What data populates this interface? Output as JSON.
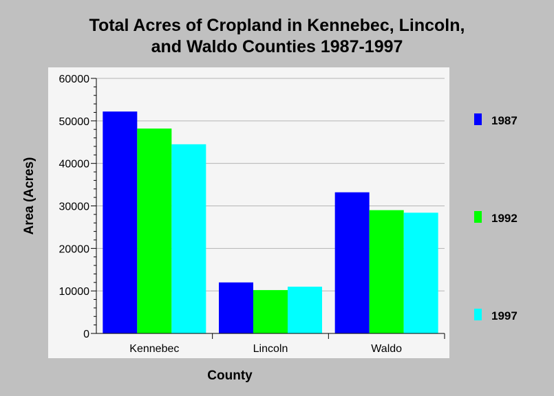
{
  "chart_data": {
    "type": "bar",
    "title_lines": [
      "Total Acres of Cropland in Kennebec, Lincoln,",
      "and Waldo Counties 1987-1997"
    ],
    "xlabel": "County",
    "ylabel": "Area (Acres)",
    "categories": [
      "Kennebec",
      "Lincoln",
      "Waldo"
    ],
    "series": [
      {
        "name": "1987",
        "color": "#0000ff",
        "values": [
          52200,
          12000,
          33200
        ]
      },
      {
        "name": "1992",
        "color": "#00ff00",
        "values": [
          48200,
          10200,
          29000
        ]
      },
      {
        "name": "1997",
        "color": "#00ffff",
        "values": [
          44500,
          11000,
          28400
        ]
      }
    ],
    "ylim": [
      0,
      60000
    ],
    "yticks": [
      0,
      10000,
      20000,
      30000,
      40000,
      50000,
      60000
    ],
    "grid": true,
    "legend_position": "right",
    "plot_background": "#f5f5f5"
  }
}
